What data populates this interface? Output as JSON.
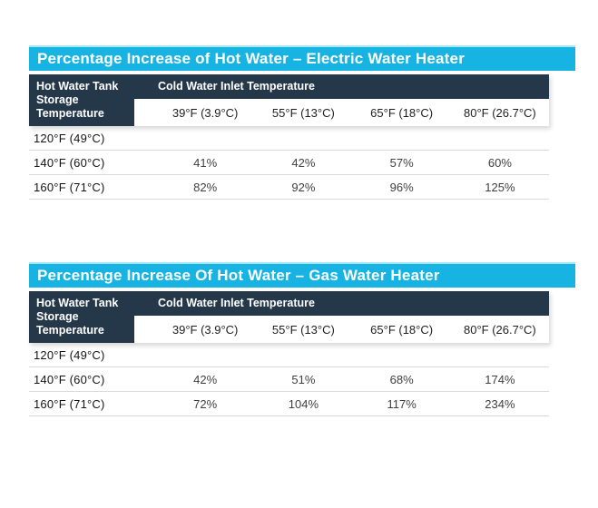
{
  "colors": {
    "title_band": "#17b3e3",
    "title_band_top_edge": "#a3e8f4",
    "header_navy": "#24384a",
    "title_text": "#ffffff",
    "row_divider": "#d9d9d9",
    "page_background": "#ffffff"
  },
  "chart_data": [
    {
      "type": "table",
      "title": "Percentage Increase of Hot Water – Electric Water Heater",
      "row_header_label": "Hot Water Tank Storage Temperature",
      "column_group_label": "Cold Water Inlet Temperature",
      "columns": [
        "39°F (3.9°C)",
        "55°F (13°C)",
        "65°F (18°C)",
        "80°F (26.7°C)"
      ],
      "rows": [
        {
          "label": "120°F (49°C)",
          "values": [
            "",
            "",
            "",
            ""
          ]
        },
        {
          "label": "140°F (60°C)",
          "values": [
            "41%",
            "42%",
            "57%",
            "60%"
          ]
        },
        {
          "label": "160°F (71°C)",
          "values": [
            "82%",
            "92%",
            "96%",
            "125%"
          ]
        }
      ]
    },
    {
      "type": "table",
      "title": "Percentage Increase Of Hot Water – Gas Water Heater",
      "row_header_label": "Hot Water Tank Storage Temperature",
      "column_group_label": "Cold Water Inlet Temperature",
      "columns": [
        "39°F (3.9°C)",
        "55°F (13°C)",
        "65°F (18°C)",
        "80°F (26.7°C)"
      ],
      "rows": [
        {
          "label": "120°F (49°C)",
          "values": [
            "",
            "",
            "",
            ""
          ]
        },
        {
          "label": "140°F (60°C)",
          "values": [
            "42%",
            "51%",
            "68%",
            "174%"
          ]
        },
        {
          "label": "160°F (71°C)",
          "values": [
            "72%",
            "104%",
            "117%",
            "234%"
          ]
        }
      ]
    }
  ]
}
